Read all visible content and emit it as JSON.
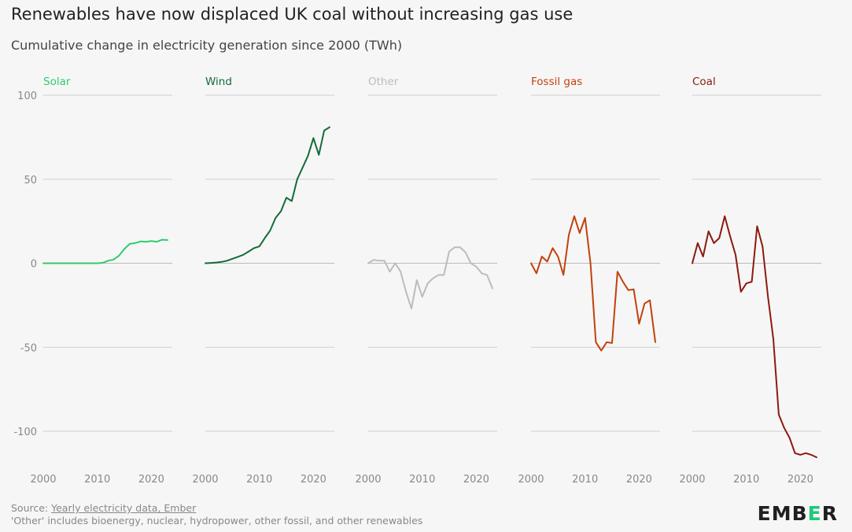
{
  "header": {
    "title": "Renewables have now displaced UK coal without increasing gas use",
    "subtitle": "Cumulative change in electricity generation since 2000 (TWh)"
  },
  "footer": {
    "source_prefix": "Source: ",
    "source_link": "Yearly electricity data, Ember",
    "note": "'Other' includes bioenergy, nuclear, hydropower, other fossil, and other renewables",
    "logo_main": "EMB",
    "logo_accent": "E",
    "logo_end": "R"
  },
  "chart_data": {
    "type": "line",
    "title": "Renewables have now displaced UK coal without increasing gas use",
    "ylabel": "Cumulative change in electricity generation since 2000 (TWh)",
    "ylim": [
      -120,
      100
    ],
    "yticks": [
      100,
      50,
      0,
      -50,
      -100
    ],
    "xticks": [
      2000,
      2010,
      2020
    ],
    "x": [
      2000,
      2001,
      2002,
      2003,
      2004,
      2005,
      2006,
      2007,
      2008,
      2009,
      2010,
      2011,
      2012,
      2013,
      2014,
      2015,
      2016,
      2017,
      2018,
      2019,
      2020,
      2021,
      2022,
      2023
    ],
    "series": [
      {
        "name": "Solar",
        "color": "#2ecc71",
        "values": [
          0,
          0,
          0,
          0,
          0,
          0,
          0,
          0,
          0,
          0,
          0,
          0.3,
          1.5,
          2.2,
          4.5,
          8.5,
          11.5,
          12,
          13,
          12.8,
          13.2,
          12.8,
          14,
          13.8
        ]
      },
      {
        "name": "Wind",
        "color": "#146b3a",
        "values": [
          0,
          0.2,
          0.4,
          0.8,
          1.5,
          2.6,
          3.8,
          5,
          7,
          9,
          10,
          15,
          19.5,
          27,
          31,
          39,
          37,
          50,
          57,
          64,
          74.5,
          64.5,
          79,
          81
        ]
      },
      {
        "name": "Other",
        "color": "#bcbcbc",
        "values": [
          0,
          2,
          1.5,
          1.5,
          -5,
          0,
          -5,
          -17,
          -27,
          -10,
          -20,
          -12,
          -9,
          -7,
          -7,
          7,
          9.5,
          9.5,
          6.5,
          0,
          -2,
          -6,
          -7,
          -15
        ]
      },
      {
        "name": "Fossil gas",
        "color": "#c2410c",
        "values": [
          0,
          -6,
          4,
          1,
          9,
          4,
          -7,
          17,
          28,
          18,
          27,
          0,
          -47,
          -52,
          -47,
          -47.5,
          -5,
          -11,
          -16,
          -15.5,
          -36,
          -24,
          -22,
          -47
        ]
      },
      {
        "name": "Coal",
        "color": "#8b1a0e",
        "values": [
          0,
          12,
          4,
          19,
          12,
          15,
          28,
          16,
          5,
          -17,
          -12,
          -11,
          22,
          10,
          -20,
          -45,
          -90,
          -98,
          -104,
          -113,
          -114,
          -113,
          -114,
          -115.5
        ]
      }
    ]
  }
}
